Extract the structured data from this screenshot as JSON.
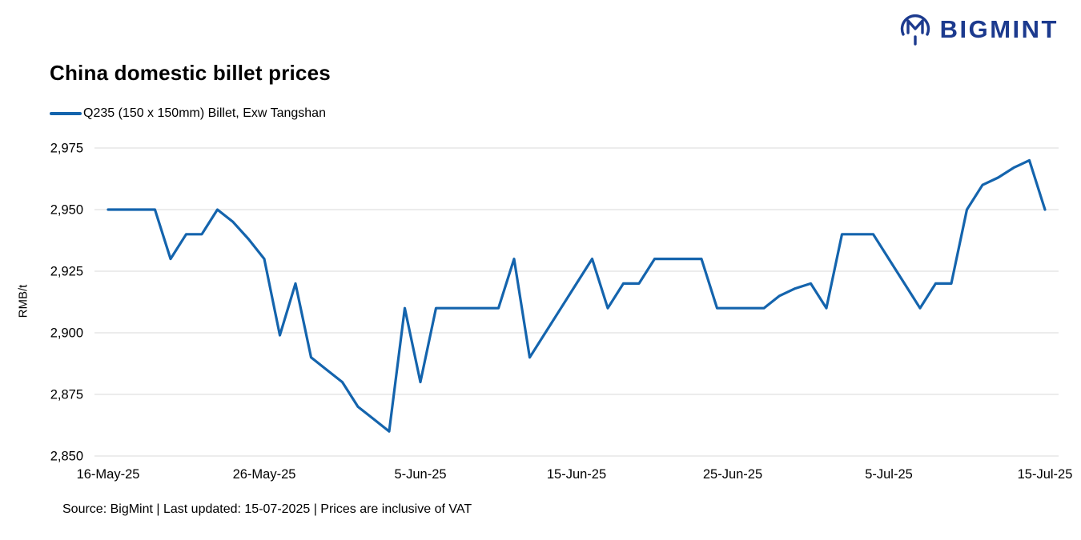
{
  "logo": {
    "text": "BIGMINT"
  },
  "title": "China domestic billet prices",
  "legend": {
    "label": "Q235 (150 x 150mm) Billet, Exw Tangshan"
  },
  "footer": "Source: BigMint | Last updated: 15-07-2025 | Prices are inclusive of VAT",
  "colors": {
    "line": "#1464ad",
    "logo": "#1c3a8e",
    "grid": "#d9d9d9",
    "text": "#000000"
  },
  "chart_data": {
    "type": "line",
    "title": "China domestic billet prices",
    "xlabel": "",
    "ylabel": "RMB/t",
    "ylim": [
      2850,
      2975
    ],
    "yticks": [
      2850,
      2875,
      2900,
      2925,
      2950,
      2975
    ],
    "xticks": [
      "16-May-25",
      "26-May-25",
      "5-Jun-25",
      "15-Jun-25",
      "25-Jun-25",
      "5-Jul-25",
      "15-Jul-25"
    ],
    "xtick_positions_days": [
      0,
      10,
      20,
      30,
      40,
      50,
      60
    ],
    "grid": "horizontal",
    "legend_position": "top-left",
    "series": [
      {
        "name": "Q235 (150 x 150mm) Billet, Exw Tangshan",
        "color": "#1464ad",
        "x": [
          "16-May-25",
          "17-May-25",
          "18-May-25",
          "19-May-25",
          "20-May-25",
          "21-May-25",
          "22-May-25",
          "23-May-25",
          "24-May-25",
          "25-May-25",
          "26-May-25",
          "27-May-25",
          "28-May-25",
          "29-May-25",
          "30-May-25",
          "31-May-25",
          "1-Jun-25",
          "2-Jun-25",
          "3-Jun-25",
          "4-Jun-25",
          "5-Jun-25",
          "6-Jun-25",
          "7-Jun-25",
          "8-Jun-25",
          "9-Jun-25",
          "10-Jun-25",
          "11-Jun-25",
          "12-Jun-25",
          "13-Jun-25",
          "14-Jun-25",
          "15-Jun-25",
          "16-Jun-25",
          "17-Jun-25",
          "18-Jun-25",
          "19-Jun-25",
          "20-Jun-25",
          "21-Jun-25",
          "22-Jun-25",
          "23-Jun-25",
          "24-Jun-25",
          "25-Jun-25",
          "26-Jun-25",
          "27-Jun-25",
          "28-Jun-25",
          "29-Jun-25",
          "30-Jun-25",
          "1-Jul-25",
          "2-Jul-25",
          "3-Jul-25",
          "4-Jul-25",
          "5-Jul-25",
          "6-Jul-25",
          "7-Jul-25",
          "8-Jul-25",
          "9-Jul-25",
          "10-Jul-25",
          "11-Jul-25",
          "12-Jul-25",
          "13-Jul-25",
          "14-Jul-25",
          "15-Jul-25"
        ],
        "values": [
          2950,
          2950,
          2950,
          2950,
          2930,
          2940,
          2940,
          2950,
          2945,
          2938,
          2930,
          2899,
          2920,
          2890,
          2885,
          2880,
          2870,
          2865,
          2860,
          2910,
          2880,
          2910,
          2910,
          2910,
          2910,
          2910,
          2930,
          2890,
          2900,
          2910,
          2920,
          2930,
          2910,
          2920,
          2920,
          2930,
          2930,
          2930,
          2930,
          2910,
          2910,
          2910,
          2910,
          2915,
          2918,
          2920,
          2910,
          2940,
          2940,
          2940,
          2930,
          2920,
          2910,
          2920,
          2920,
          2950,
          2960,
          2963,
          2967,
          2970,
          2950
        ]
      }
    ]
  }
}
